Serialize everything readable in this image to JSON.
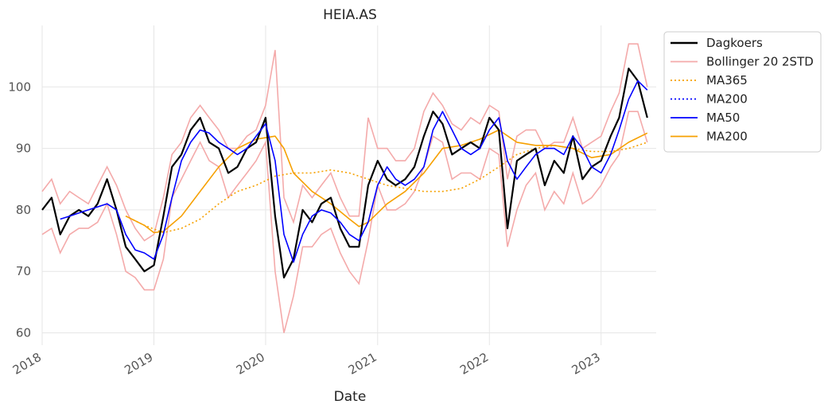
{
  "chart_data": {
    "type": "line",
    "title": "HEIA.AS",
    "xlabel": "Date",
    "ylabel": "",
    "x_range": [
      "2018-01-01",
      "2023-06-30"
    ],
    "ylim": [
      58,
      110
    ],
    "grid": true,
    "legend_position": "outside-top-right",
    "x_ticks": [
      "2018",
      "2019",
      "2020",
      "2021",
      "2022",
      "2023"
    ],
    "y_ticks": [
      60,
      70,
      80,
      90,
      100
    ],
    "series": [
      {
        "name": "Dagkoers",
        "color": "#000000",
        "style": "solid",
        "x": [
          "2018-01-01",
          "2018-02-01",
          "2018-03-01",
          "2018-04-01",
          "2018-05-01",
          "2018-06-01",
          "2018-07-01",
          "2018-08-01",
          "2018-09-01",
          "2018-10-01",
          "2018-11-01",
          "2018-12-01",
          "2019-01-01",
          "2019-02-01",
          "2019-03-01",
          "2019-04-01",
          "2019-05-01",
          "2019-06-01",
          "2019-07-01",
          "2019-08-01",
          "2019-09-01",
          "2019-10-01",
          "2019-11-01",
          "2019-12-01",
          "2020-01-01",
          "2020-02-01",
          "2020-03-01",
          "2020-04-01",
          "2020-05-01",
          "2020-06-01",
          "2020-07-01",
          "2020-08-01",
          "2020-09-01",
          "2020-10-01",
          "2020-11-01",
          "2020-12-01",
          "2021-01-01",
          "2021-02-01",
          "2021-03-01",
          "2021-04-01",
          "2021-05-01",
          "2021-06-01",
          "2021-07-01",
          "2021-08-01",
          "2021-09-01",
          "2021-10-01",
          "2021-11-01",
          "2021-12-01",
          "2022-01-01",
          "2022-02-01",
          "2022-03-01",
          "2022-04-01",
          "2022-05-01",
          "2022-06-01",
          "2022-07-01",
          "2022-08-01",
          "2022-09-01",
          "2022-10-01",
          "2022-11-01",
          "2022-12-01",
          "2023-01-01",
          "2023-02-01",
          "2023-03-01",
          "2023-04-01",
          "2023-05-01",
          "2023-06-01"
        ],
        "values": [
          80,
          82,
          76,
          79,
          80,
          79,
          81,
          85,
          80,
          74,
          72,
          70,
          71,
          79,
          87,
          89,
          93,
          95,
          91,
          90,
          86,
          87,
          90,
          91,
          95,
          79,
          69,
          72,
          80,
          78,
          81,
          82,
          77,
          74,
          74,
          84,
          88,
          85,
          84,
          85,
          87,
          92,
          96,
          94,
          89,
          90,
          91,
          90,
          95,
          93,
          77,
          88,
          89,
          90,
          84,
          88,
          86,
          92,
          85,
          87,
          88,
          92,
          95,
          103,
          101,
          95
        ]
      },
      {
        "name": "Bollinger 20 2STD",
        "color": "#f4aaaa",
        "style": "solid",
        "x": [
          "2018-01-01",
          "2018-02-01",
          "2018-03-01",
          "2018-04-01",
          "2018-05-01",
          "2018-06-01",
          "2018-07-01",
          "2018-08-01",
          "2018-09-01",
          "2018-10-01",
          "2018-11-01",
          "2018-12-01",
          "2019-01-01",
          "2019-02-01",
          "2019-03-01",
          "2019-04-01",
          "2019-05-01",
          "2019-06-01",
          "2019-07-01",
          "2019-08-01",
          "2019-09-01",
          "2019-10-01",
          "2019-11-01",
          "2019-12-01",
          "2020-01-01",
          "2020-02-01",
          "2020-03-01",
          "2020-04-01",
          "2020-05-01",
          "2020-06-01",
          "2020-07-01",
          "2020-08-01",
          "2020-09-01",
          "2020-10-01",
          "2020-11-01",
          "2020-12-01",
          "2021-01-01",
          "2021-02-01",
          "2021-03-01",
          "2021-04-01",
          "2021-05-01",
          "2021-06-01",
          "2021-07-01",
          "2021-08-01",
          "2021-09-01",
          "2021-10-01",
          "2021-11-01",
          "2021-12-01",
          "2022-01-01",
          "2022-02-01",
          "2022-03-01",
          "2022-04-01",
          "2022-05-01",
          "2022-06-01",
          "2022-07-01",
          "2022-08-01",
          "2022-09-01",
          "2022-10-01",
          "2022-11-01",
          "2022-12-01",
          "2023-01-01",
          "2023-02-01",
          "2023-03-01",
          "2023-04-01",
          "2023-05-01",
          "2023-06-01"
        ],
        "upper": [
          83,
          85,
          81,
          83,
          82,
          81,
          84,
          87,
          84,
          80,
          77,
          75,
          76,
          82,
          89,
          91,
          95,
          97,
          95,
          93,
          90,
          90,
          92,
          93,
          97,
          106,
          82,
          78,
          84,
          82,
          84,
          86,
          82,
          79,
          79,
          95,
          90,
          90,
          88,
          88,
          90,
          96,
          99,
          97,
          94,
          93,
          95,
          94,
          97,
          96,
          85,
          92,
          93,
          93,
          90,
          91,
          91,
          95,
          90,
          91,
          92,
          96,
          99,
          107,
          107,
          100
        ],
        "lower": [
          76,
          77,
          73,
          76,
          77,
          77,
          78,
          81,
          76,
          70,
          69,
          67,
          67,
          72,
          82,
          85,
          88,
          91,
          88,
          87,
          82,
          84,
          86,
          88,
          91,
          70,
          60,
          66,
          74,
          74,
          76,
          77,
          73,
          70,
          68,
          75,
          84,
          80,
          80,
          81,
          83,
          87,
          92,
          91,
          85,
          86,
          86,
          85,
          90,
          89,
          74,
          80,
          84,
          86,
          80,
          83,
          81,
          86,
          81,
          82,
          84,
          87,
          89,
          96,
          96,
          91
        ]
      },
      {
        "name": "MA365",
        "color": "#f6a000",
        "style": "dotted",
        "x": [
          "2018-10-01",
          "2018-12-01",
          "2019-02-01",
          "2019-04-01",
          "2019-06-01",
          "2019-08-01",
          "2019-10-01",
          "2019-12-01",
          "2020-02-01",
          "2020-04-01",
          "2020-06-01",
          "2020-08-01",
          "2020-10-01",
          "2020-12-01",
          "2021-02-01",
          "2021-04-01",
          "2021-06-01",
          "2021-08-01",
          "2021-10-01",
          "2021-12-01",
          "2022-02-01",
          "2022-04-01",
          "2022-06-01",
          "2022-08-01",
          "2022-10-01",
          "2022-12-01",
          "2023-02-01",
          "2023-04-01",
          "2023-06-01"
        ],
        "values": [
          79,
          77.5,
          76.3,
          77,
          78.5,
          81,
          83,
          84,
          85.5,
          86,
          86,
          86.5,
          86,
          85,
          84,
          83.5,
          83,
          83,
          83.5,
          85,
          87,
          89,
          90,
          90.5,
          90,
          89.5,
          89.5,
          90,
          91
        ]
      },
      {
        "name": "MA200",
        "color": "#0000ff",
        "style": "dotted",
        "x": [],
        "values": []
      },
      {
        "name": "MA50",
        "color": "#0000ff",
        "style": "solid",
        "x": [
          "2018-03-01",
          "2018-04-01",
          "2018-05-01",
          "2018-06-01",
          "2018-07-01",
          "2018-08-01",
          "2018-09-01",
          "2018-10-01",
          "2018-11-01",
          "2018-12-01",
          "2019-01-01",
          "2019-02-01",
          "2019-03-01",
          "2019-04-01",
          "2019-05-01",
          "2019-06-01",
          "2019-07-01",
          "2019-08-01",
          "2019-09-01",
          "2019-10-01",
          "2019-11-01",
          "2019-12-01",
          "2020-01-01",
          "2020-02-01",
          "2020-03-01",
          "2020-04-01",
          "2020-05-01",
          "2020-06-01",
          "2020-07-01",
          "2020-08-01",
          "2020-09-01",
          "2020-10-01",
          "2020-11-01",
          "2020-12-01",
          "2021-01-01",
          "2021-02-01",
          "2021-03-01",
          "2021-04-01",
          "2021-05-01",
          "2021-06-01",
          "2021-07-01",
          "2021-08-01",
          "2021-09-01",
          "2021-10-01",
          "2021-11-01",
          "2021-12-01",
          "2022-01-01",
          "2022-02-01",
          "2022-03-01",
          "2022-04-01",
          "2022-05-01",
          "2022-06-01",
          "2022-07-01",
          "2022-08-01",
          "2022-09-01",
          "2022-10-01",
          "2022-11-01",
          "2022-12-01",
          "2023-01-01",
          "2023-02-01",
          "2023-03-01",
          "2023-04-01",
          "2023-05-01",
          "2023-06-01"
        ],
        "values": [
          78.5,
          79,
          79.5,
          80,
          80.5,
          81,
          80,
          76,
          73.5,
          73,
          72,
          76,
          82,
          88,
          91,
          93,
          92.5,
          91,
          90,
          89,
          90,
          92,
          94,
          88,
          76,
          71.5,
          76,
          79,
          80,
          79.5,
          78,
          76,
          75,
          78,
          84,
          87,
          85,
          84,
          85,
          87,
          93,
          96,
          93,
          90,
          89,
          90,
          93,
          95,
          88,
          85,
          87,
          89,
          90,
          90,
          89,
          92,
          90,
          87,
          86,
          89,
          93,
          98,
          101,
          99.5
        ]
      },
      {
        "name": "MA200",
        "color": "#f6a000",
        "style": "solid",
        "x": [
          "2018-10-01",
          "2018-12-01",
          "2019-01-01",
          "2019-02-01",
          "2019-04-01",
          "2019-06-01",
          "2019-08-01",
          "2019-10-01",
          "2019-12-01",
          "2020-02-01",
          "2020-03-01",
          "2020-04-01",
          "2020-06-01",
          "2020-08-01",
          "2020-10-01",
          "2020-11-01",
          "2020-12-01",
          "2021-02-01",
          "2021-04-01",
          "2021-06-01",
          "2021-08-01",
          "2021-10-01",
          "2021-12-01",
          "2022-02-01",
          "2022-04-01",
          "2022-06-01",
          "2022-08-01",
          "2022-10-01",
          "2022-12-01",
          "2023-02-01",
          "2023-04-01",
          "2023-06-01"
        ],
        "values": [
          79,
          77.5,
          76.3,
          76.5,
          79,
          83,
          87,
          90,
          91.5,
          92,
          90,
          86,
          83,
          81,
          78.5,
          77.3,
          78,
          81,
          83,
          86,
          90,
          90.5,
          91.5,
          93,
          91,
          90.5,
          90.5,
          90,
          88.5,
          89,
          91,
          92.5
        ]
      }
    ]
  }
}
